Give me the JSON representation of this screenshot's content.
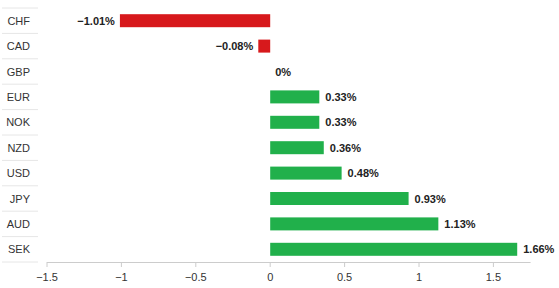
{
  "chart_data": {
    "type": "bar",
    "orientation": "horizontal",
    "categories": [
      "CHF",
      "CAD",
      "GBP",
      "EUR",
      "NOK",
      "NZD",
      "USD",
      "JPY",
      "AUD",
      "SEK"
    ],
    "values": [
      -1.01,
      -0.08,
      0,
      0.33,
      0.33,
      0.36,
      0.48,
      0.93,
      1.13,
      1.66
    ],
    "value_labels": [
      "−1.01%",
      "−0.08%",
      "0%",
      "0.33%",
      "0.33%",
      "0.36%",
      "0.48%",
      "0.93%",
      "1.13%",
      "1.66%"
    ],
    "colors": [
      "#d7191c",
      "#d7191c",
      "#21b04b",
      "#21b04b",
      "#21b04b",
      "#21b04b",
      "#21b04b",
      "#21b04b",
      "#21b04b",
      "#21b04b"
    ],
    "xlim": [
      -1.5,
      1.75
    ],
    "xticks": [
      {
        "value": -1.5,
        "label": "−1.5"
      },
      {
        "value": -1,
        "label": "−1"
      },
      {
        "value": -0.5,
        "label": "−0.5"
      },
      0,
      0.5,
      1,
      1.5
    ],
    "data_labels": true,
    "grid": false
  }
}
